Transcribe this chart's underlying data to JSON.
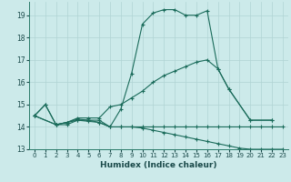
{
  "xlabel": "Humidex (Indice chaleur)",
  "bg_color": "#cceaea",
  "grid_color": "#b0d4d4",
  "line_color": "#1a6b5a",
  "xlim": [
    -0.5,
    23.5
  ],
  "ylim": [
    13,
    19.6
  ],
  "yticks": [
    13,
    14,
    15,
    16,
    17,
    18,
    19
  ],
  "xticks": [
    0,
    1,
    2,
    3,
    4,
    5,
    6,
    7,
    8,
    9,
    10,
    11,
    12,
    13,
    14,
    15,
    16,
    17,
    18,
    19,
    20,
    21,
    22,
    23
  ],
  "line1_x": [
    0,
    1,
    2,
    3,
    4,
    5,
    6,
    7,
    8,
    9,
    10,
    11,
    12,
    13,
    14,
    15,
    16,
    17,
    18,
    20,
    22
  ],
  "line1_y": [
    14.5,
    15.0,
    14.1,
    14.1,
    14.3,
    14.3,
    14.2,
    14.0,
    14.8,
    16.4,
    18.6,
    19.1,
    19.25,
    19.25,
    19.0,
    19.0,
    19.2,
    16.6,
    15.7,
    14.3,
    14.3
  ],
  "line2_x": [
    0,
    1,
    2,
    3,
    4,
    5,
    6,
    7,
    8,
    9,
    10,
    11,
    12,
    13,
    14,
    15,
    16,
    17,
    18,
    20,
    22
  ],
  "line2_y": [
    14.5,
    15.0,
    14.1,
    14.2,
    14.4,
    14.4,
    14.4,
    14.9,
    15.0,
    15.3,
    15.6,
    16.0,
    16.3,
    16.5,
    16.7,
    16.9,
    17.0,
    16.6,
    15.7,
    14.3,
    14.3
  ],
  "line3_x": [
    0,
    2,
    3,
    4,
    5,
    6,
    7,
    8,
    9,
    10,
    11,
    12,
    13,
    14,
    15,
    16,
    17,
    18,
    19,
    20,
    21,
    22,
    23
  ],
  "line3_y": [
    14.5,
    14.1,
    14.2,
    14.35,
    14.3,
    14.3,
    14.0,
    14.0,
    14.0,
    13.95,
    13.85,
    13.75,
    13.65,
    13.55,
    13.45,
    13.35,
    13.25,
    13.15,
    13.05,
    13.0,
    13.0,
    13.0,
    13.0
  ],
  "line4_x": [
    0,
    2,
    3,
    4,
    5,
    6,
    7,
    8,
    9,
    10,
    11,
    12,
    13,
    14,
    15,
    16,
    17,
    18,
    19,
    20,
    21,
    22,
    23
  ],
  "line4_y": [
    14.5,
    14.1,
    14.2,
    14.3,
    14.25,
    14.2,
    14.0,
    14.0,
    14.0,
    14.0,
    14.0,
    14.0,
    14.0,
    14.0,
    14.0,
    14.0,
    14.0,
    14.0,
    14.0,
    14.0,
    14.0,
    14.0,
    14.0
  ]
}
